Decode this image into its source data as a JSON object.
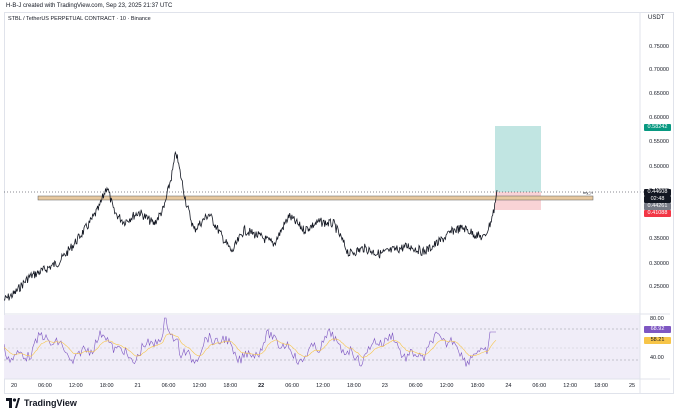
{
  "credit": "H-B-J created with TradingView.com, Sep 23, 2025 21:37 UTC",
  "symbol": "STBL / TetherUS PERPETUAL CONTRACT · 10 · Binance",
  "currency": "USDT",
  "price_axis": [
    "0.75000",
    "0.70000",
    "0.65000",
    "0.60000",
    "0.55000",
    "0.50000",
    "0.45000",
    "0.40000",
    "0.35000",
    "0.30000",
    "0.25000"
  ],
  "badges": {
    "target": {
      "text": "0.58242",
      "color": "#089981"
    },
    "current": {
      "text": "0.44608",
      "color": "#131722"
    },
    "countdown": {
      "text": "02:48",
      "color": "#131722"
    },
    "level": {
      "text": "0.44261",
      "color": "#787b86"
    },
    "stop": {
      "text": "0.41088",
      "color": "#f23645"
    }
  },
  "line_tag": "my_h",
  "time_axis": [
    "20",
    "06:00",
    "12:00",
    "18:00",
    "21",
    "06:00",
    "12:00",
    "18:00",
    "22",
    "06:00",
    "12:00",
    "18:00",
    "23",
    "06:00",
    "12:00",
    "18:00",
    "24",
    "06:00",
    "12:00",
    "18:00",
    "25"
  ],
  "rsi": {
    "levels": [
      "80.00",
      "40.00"
    ],
    "value": {
      "text": "68.92",
      "color": "#7e57c2"
    },
    "ma": {
      "text": "58.21",
      "color": "#f7c548"
    }
  },
  "footer": {
    "brand": "TradingView"
  },
  "colors": {
    "candles": "#131722",
    "profit_zone": "#b2dfdb",
    "loss_zone": "#f8c8cc",
    "level_band": "#e8c9a0",
    "rsi_line": "#7e57c2"
  }
}
